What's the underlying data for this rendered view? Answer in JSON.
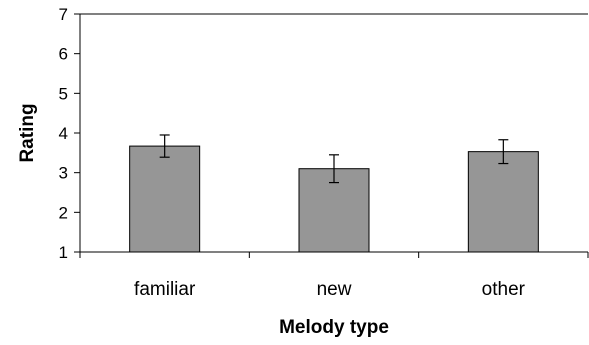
{
  "chart_data": {
    "type": "bar",
    "title": "",
    "xlabel": "Melody type",
    "ylabel": "Rating",
    "categories": [
      "familiar",
      "new",
      "other"
    ],
    "values": [
      3.67,
      3.1,
      3.53
    ],
    "error": [
      0.28,
      0.35,
      0.3
    ],
    "ylim": [
      1,
      7
    ],
    "yticks": [
      "1",
      "2",
      "3",
      "4",
      "5",
      "6",
      "7"
    ],
    "grid": false,
    "legend": "none",
    "bar_color": "#969696",
    "bar_edge_color": "#000000"
  }
}
